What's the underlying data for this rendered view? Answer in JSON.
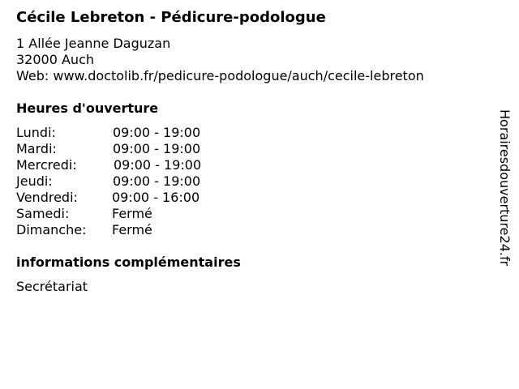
{
  "title": "Cécile Lebreton - Pédicure-podologue",
  "address": {
    "street": "1 Allée Jeanne Daguzan",
    "city": "32000 Auch",
    "web": "Web: www.doctolib.fr/pedicure-podologue/auch/cecile-lebreton"
  },
  "hours_heading": "Heures d'ouverture",
  "hours": [
    {
      "day": "Lundi:",
      "time": "09:00 - 19:00"
    },
    {
      "day": "Mardi:",
      "time": "09:00 - 19:00"
    },
    {
      "day": "Mercredi:",
      "time": "09:00 - 19:00"
    },
    {
      "day": "Jeudi:",
      "time": "09:00 - 19:00"
    },
    {
      "day": "Vendredi:",
      "time": "09:00 - 16:00"
    },
    {
      "day": "Samedi:",
      "time": "Fermé"
    },
    {
      "day": "Dimanche:",
      "time": "Fermé"
    }
  ],
  "info_heading": "informations complémentaires",
  "info_text": "Secrétariat",
  "side_watermark": "Horairesdouverture24.fr"
}
